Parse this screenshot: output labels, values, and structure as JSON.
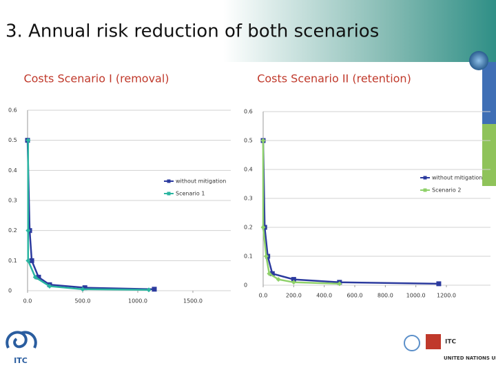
{
  "title": "3. Annual risk reduction of both scenarios",
  "logos": {
    "left": "ITC",
    "right_top": "ITC",
    "right_bottom": "UNITED NATIONS UNIVERSITY"
  },
  "chart_data": [
    {
      "type": "line",
      "title": "Costs Scenario I (removal)",
      "xlim": [
        0,
        1500
      ],
      "xticks": [
        {
          "value": 0,
          "label": "0.0"
        },
        {
          "value": 500,
          "label": "500.0"
        },
        {
          "value": 1000,
          "label": "1000.0"
        },
        {
          "value": 1500,
          "label": "1500.0"
        }
      ],
      "ylim": [
        0,
        0.6
      ],
      "yticks": [
        0,
        0.1,
        0.2,
        0.3,
        0.4,
        0.5,
        0.6
      ],
      "grid": true,
      "legend": "right",
      "series": [
        {
          "name": "without mitigation",
          "color": "#2b3a9e",
          "x": [
            0,
            19,
            38,
            100,
            200,
            520,
            1150
          ],
          "values": [
            0.5,
            0.2,
            0.1,
            0.045,
            0.02,
            0.01,
            0.005
          ]
        },
        {
          "name": "Scenario 1",
          "color": "#2ab5a0",
          "x": [
            5,
            5,
            5,
            70,
            200,
            500,
            1100
          ],
          "values": [
            0.5,
            0.2,
            0.1,
            0.045,
            0.015,
            0.005,
            0.003
          ]
        }
      ]
    },
    {
      "type": "line",
      "title": "Costs Scenario II (retention)",
      "xlim": [
        0,
        1200
      ],
      "xticks": [
        {
          "value": 0,
          "label": "0.0"
        },
        {
          "value": 200,
          "label": "200.0"
        },
        {
          "value": 400,
          "label": "400.0"
        },
        {
          "value": 600,
          "label": "600.0"
        },
        {
          "value": 800,
          "label": "800.0"
        },
        {
          "value": 1000,
          "label": "1000.0"
        },
        {
          "value": 1200,
          "label": "1200.0"
        }
      ],
      "ylim": [
        0,
        0.6
      ],
      "yticks": [
        0,
        0.1,
        0.2,
        0.3,
        0.4,
        0.5,
        0.6
      ],
      "grid": true,
      "legend": "right",
      "series": [
        {
          "name": "without mitigation",
          "color": "#2b3a9e",
          "x": [
            0,
            10,
            30,
            60,
            200,
            500,
            1150
          ],
          "values": [
            0.5,
            0.2,
            0.1,
            0.04,
            0.02,
            0.01,
            0.005
          ]
        },
        {
          "name": "Scenario 2",
          "color": "#8fd16a",
          "x": [
            0,
            0,
            20,
            40,
            100,
            200,
            500
          ],
          "values": [
            0.5,
            0.2,
            0.1,
            0.04,
            0.02,
            0.01,
            0.005
          ]
        }
      ]
    }
  ]
}
